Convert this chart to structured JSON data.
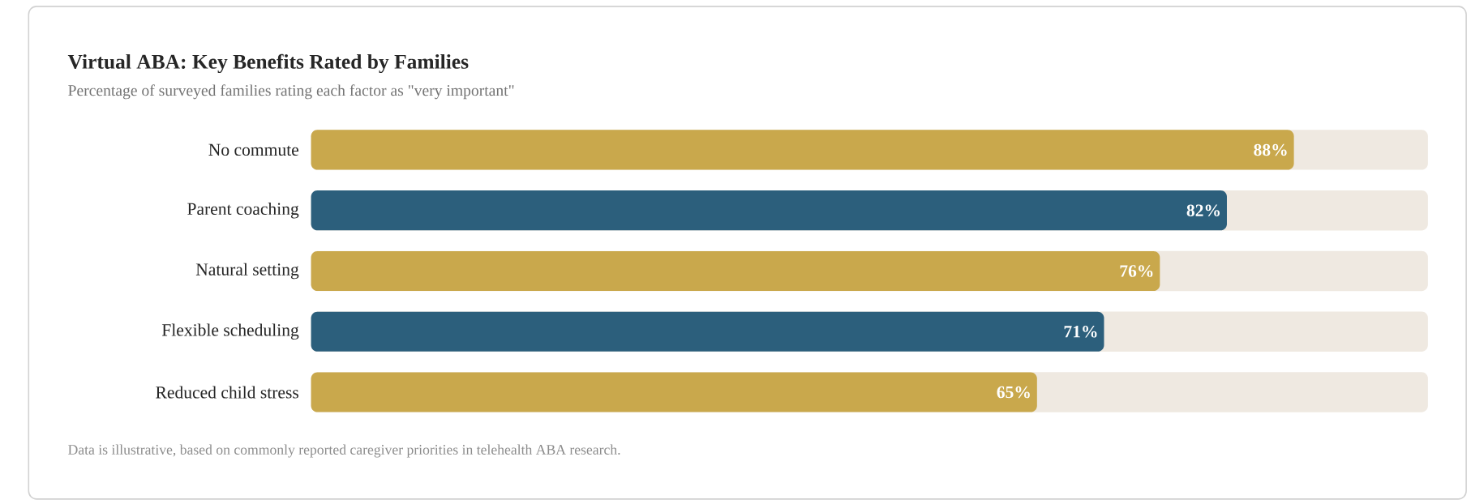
{
  "chart_data": {
    "type": "bar",
    "orientation": "horizontal",
    "title": "Virtual ABA: Key Benefits Rated by Families",
    "subtitle": "Percentage of surveyed families rating each factor as \"very important\"",
    "categories": [
      "No commute",
      "Parent coaching",
      "Natural setting",
      "Flexible scheduling",
      "Reduced child stress"
    ],
    "values": [
      88,
      82,
      76,
      71,
      65
    ],
    "colors": [
      "#c9a84c",
      "#2c5f7c",
      "#c9a84c",
      "#2c5f7c",
      "#c9a84c"
    ],
    "value_labels": [
      "88%",
      "82%",
      "76%",
      "71%",
      "65%"
    ],
    "xlim": [
      0,
      100
    ],
    "annotations": [
      "Data is illustrative, based on commonly reported caregiver priorities in telehealth ABA research."
    ]
  }
}
